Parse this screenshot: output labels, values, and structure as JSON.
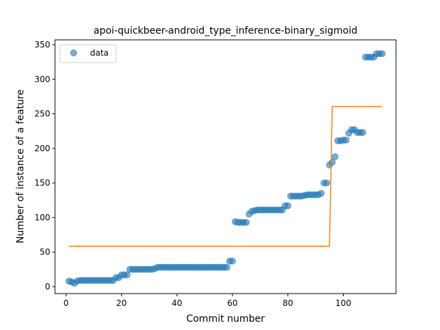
{
  "chart_data": {
    "type": "scatter",
    "title": "apoi-quickbeer-android_type_inference-binary_sigmoid",
    "xlabel": "Commit number",
    "ylabel": "Number of instance of a feature",
    "xlim": [
      -4,
      119
    ],
    "ylim": [
      -10,
      357
    ],
    "xticks": [
      0,
      20,
      40,
      60,
      80,
      100
    ],
    "yticks": [
      0,
      50,
      100,
      150,
      200,
      250,
      300,
      350
    ],
    "grid": false,
    "legend": {
      "position": "top-left",
      "entries": [
        "data"
      ]
    },
    "colors": {
      "data": "#1f77b4",
      "fit": "#ff7f0e"
    },
    "series": [
      {
        "name": "data",
        "kind": "scatter",
        "x": [
          1,
          2,
          3,
          4,
          5,
          6,
          7,
          8,
          9,
          10,
          11,
          12,
          13,
          14,
          15,
          16,
          17,
          18,
          19,
          20,
          21,
          22,
          23,
          24,
          25,
          26,
          27,
          28,
          29,
          30,
          31,
          32,
          33,
          34,
          35,
          36,
          37,
          38,
          39,
          40,
          41,
          42,
          43,
          44,
          45,
          46,
          47,
          48,
          49,
          50,
          51,
          52,
          53,
          54,
          55,
          56,
          57,
          58,
          59,
          60,
          61,
          62,
          63,
          64,
          65,
          66,
          67,
          68,
          69,
          70,
          71,
          72,
          73,
          74,
          75,
          76,
          77,
          78,
          79,
          80,
          81,
          82,
          83,
          84,
          85,
          86,
          87,
          88,
          89,
          90,
          91,
          92,
          93,
          94,
          95,
          96,
          97,
          98,
          99,
          100,
          101,
          102,
          103,
          104,
          105,
          106,
          107,
          108,
          109,
          110,
          111,
          112,
          113,
          114
        ],
        "y": [
          8,
          7,
          5,
          8,
          9,
          9,
          9,
          9,
          9,
          9,
          9,
          9,
          9,
          9,
          9,
          9,
          9,
          13,
          13,
          17,
          17,
          17,
          25,
          25,
          25,
          25,
          25,
          25,
          25,
          25,
          25,
          26,
          28,
          28,
          28,
          28,
          28,
          28,
          28,
          28,
          28,
          28,
          28,
          28,
          28,
          28,
          28,
          28,
          28,
          28,
          28,
          28,
          28,
          28,
          28,
          28,
          28,
          28,
          37,
          37,
          94,
          93,
          93,
          93,
          93,
          105,
          109,
          110,
          111,
          111,
          111,
          111,
          111,
          111,
          111,
          111,
          111,
          111,
          117,
          117,
          131,
          131,
          131,
          131,
          131,
          132,
          133,
          133,
          133,
          133,
          133,
          135,
          150,
          150,
          176,
          180,
          188,
          211,
          211,
          212,
          212,
          222,
          227,
          227,
          223,
          223,
          223,
          332,
          332,
          332,
          332,
          337,
          337,
          337
        ]
      },
      {
        "name": "",
        "kind": "line",
        "x": [
          1,
          95,
          96,
          114
        ],
        "y": [
          58.5,
          58.5,
          260.5,
          260.5
        ]
      }
    ]
  }
}
